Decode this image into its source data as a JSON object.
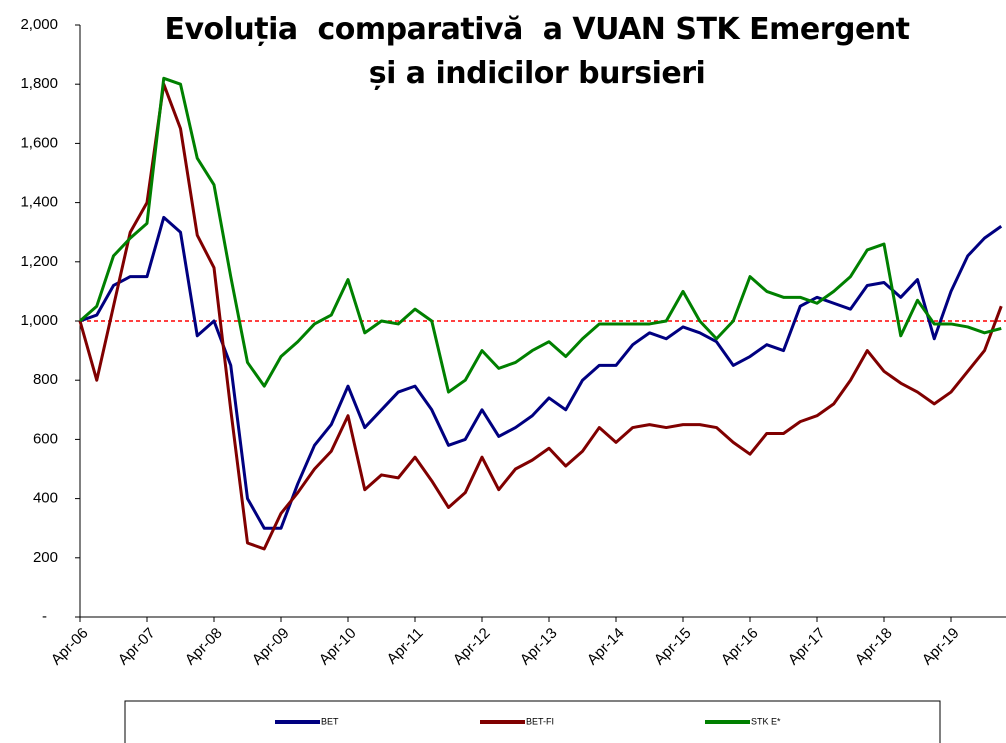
{
  "chart_data": {
    "type": "line",
    "title": "Evoluția  comparativă  a VUAN STK Emergent și a indicilor bursieri",
    "categories": [
      "Apr-06",
      null,
      null,
      null,
      "Apr-07",
      null,
      null,
      null,
      "Apr-08",
      null,
      null,
      null,
      "Apr-09",
      null,
      null,
      null,
      "Apr-10",
      null,
      null,
      null,
      "Apr-11",
      null,
      null,
      null,
      "Apr-12",
      null,
      null,
      null,
      "Apr-13",
      null,
      null,
      null,
      "Apr-14",
      null,
      null,
      null,
      "Apr-15",
      null,
      null,
      null,
      "Apr-16",
      null,
      null,
      null,
      "Apr-17",
      null,
      null,
      null,
      "Apr-18",
      null,
      null,
      null,
      "Apr-19",
      null,
      null,
      null
    ],
    "series": [
      {
        "name": "BET",
        "color": "#000080",
        "values": [
          1000,
          1020,
          1120,
          1150,
          1150,
          1350,
          1300,
          950,
          1000,
          850,
          400,
          300,
          300,
          450,
          580,
          650,
          780,
          640,
          700,
          760,
          780,
          700,
          580,
          600,
          700,
          610,
          640,
          680,
          740,
          700,
          800,
          850,
          850,
          920,
          960,
          940,
          980,
          960,
          930,
          850,
          880,
          920,
          900,
          1050,
          1080,
          1060,
          1040,
          1120,
          1130,
          1080,
          1140,
          940,
          1100,
          1220,
          1280,
          1320
        ]
      },
      {
        "name": "BET-FI",
        "color": "#800000",
        "values": [
          1000,
          800,
          1050,
          1300,
          1400,
          1800,
          1650,
          1290,
          1180,
          700,
          250,
          230,
          350,
          420,
          500,
          560,
          680,
          430,
          480,
          470,
          540,
          460,
          370,
          420,
          540,
          430,
          500,
          530,
          570,
          510,
          560,
          640,
          590,
          640,
          650,
          640,
          650,
          650,
          640,
          590,
          550,
          620,
          620,
          660,
          680,
          720,
          800,
          900,
          830,
          790,
          760,
          720,
          760,
          830,
          900,
          1050
        ]
      },
      {
        "name": "STK E*",
        "color": "#008000",
        "values": [
          1000,
          1050,
          1220,
          1280,
          1330,
          1820,
          1800,
          1550,
          1460,
          1150,
          860,
          780,
          880,
          930,
          990,
          1020,
          1140,
          960,
          1000,
          990,
          1040,
          1000,
          760,
          800,
          900,
          840,
          860,
          900,
          930,
          880,
          940,
          990,
          990,
          990,
          990,
          1000,
          1100,
          1000,
          940,
          1000,
          1150,
          1100,
          1080,
          1080,
          1060,
          1100,
          1150,
          1240,
          1260,
          950,
          1070,
          990,
          990,
          980,
          960,
          975
        ]
      }
    ],
    "reference_line": 1000,
    "ylim": [
      0,
      2000
    ],
    "yticks": [
      {
        "value": 0,
        "label": "-"
      },
      200,
      400,
      600,
      800,
      {
        "value": 1000,
        "label": "1,000"
      },
      {
        "value": 1200,
        "label": "1,200"
      },
      {
        "value": 1400,
        "label": "1,400"
      },
      {
        "value": 1600,
        "label": "1,600"
      },
      {
        "value": 1800,
        "label": "1,800"
      },
      {
        "value": 2000,
        "label": "2,000"
      }
    ]
  }
}
